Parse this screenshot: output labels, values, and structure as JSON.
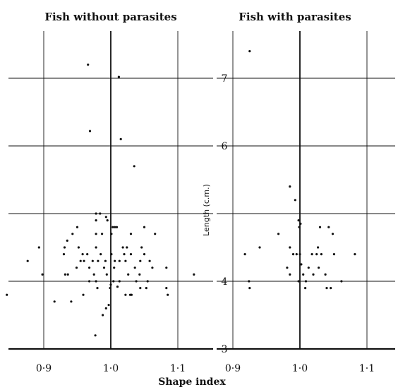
{
  "chart_data": {
    "type": "scatter",
    "xlabel": "Shape index",
    "ylabel": "Length (c.m.)",
    "xlim": [
      0.85,
      1.15
    ],
    "ylim": [
      3,
      8.6
    ],
    "x_ticks": [
      0.9,
      1.0,
      1.1
    ],
    "x_tick_labels": [
      "0·9",
      "1·0",
      "1·1"
    ],
    "y_ticks": [
      3,
      4,
      5,
      6,
      7
    ],
    "y_tick_labels": [
      "3",
      "4",
      "",
      "6",
      "7"
    ],
    "grid": true,
    "panels": [
      {
        "title": "Fish without parasites",
        "points": [
          [
            0.966,
            7.2
          ],
          [
            1.012,
            7.02
          ],
          [
            0.969,
            6.22
          ],
          [
            1.015,
            6.1
          ],
          [
            1.035,
            5.7
          ],
          [
            0.978,
            5.0
          ],
          [
            0.984,
            5.0
          ],
          [
            1.003,
            4.8
          ],
          [
            1.006,
            4.8
          ],
          [
            1.009,
            4.8
          ],
          [
            0.95,
            4.8
          ],
          [
            1.05,
            4.8
          ],
          [
            0.978,
            4.9
          ],
          [
            0.995,
            4.9
          ],
          [
            0.993,
            4.95
          ],
          [
            0.935,
            4.6
          ],
          [
            0.943,
            4.7
          ],
          [
            0.978,
            4.7
          ],
          [
            0.987,
            4.7
          ],
          [
            1.001,
            4.7
          ],
          [
            1.03,
            4.7
          ],
          [
            1.066,
            4.7
          ],
          [
            0.952,
            4.5
          ],
          [
            0.931,
            4.5
          ],
          [
            0.893,
            4.5
          ],
          [
            0.978,
            4.5
          ],
          [
            1.018,
            4.5
          ],
          [
            1.024,
            4.5
          ],
          [
            1.046,
            4.5
          ],
          [
            0.955,
            4.3
          ],
          [
            0.96,
            4.3
          ],
          [
            0.973,
            4.3
          ],
          [
            0.981,
            4.3
          ],
          [
            0.992,
            4.3
          ],
          [
            1.006,
            4.3
          ],
          [
            1.013,
            4.3
          ],
          [
            1.022,
            4.3
          ],
          [
            1.044,
            4.3
          ],
          [
            1.058,
            4.3
          ],
          [
            0.958,
            4.4
          ],
          [
            0.985,
            4.4
          ],
          [
            1.001,
            4.4
          ],
          [
            1.02,
            4.4
          ],
          [
            1.03,
            4.4
          ],
          [
            1.05,
            4.4
          ],
          [
            0.93,
            4.4
          ],
          [
            0.965,
            4.4
          ],
          [
            0.876,
            4.3
          ],
          [
            0.949,
            4.2
          ],
          [
            0.968,
            4.2
          ],
          [
            0.99,
            4.2
          ],
          [
            1.005,
            4.2
          ],
          [
            1.036,
            4.2
          ],
          [
            1.062,
            4.2
          ],
          [
            1.083,
            4.2
          ],
          [
            0.898,
            4.1
          ],
          [
            0.932,
            4.1
          ],
          [
            0.936,
            4.1
          ],
          [
            0.975,
            4.1
          ],
          [
            0.994,
            4.1
          ],
          [
            1.026,
            4.1
          ],
          [
            1.043,
            4.1
          ],
          [
            1.124,
            4.1
          ],
          [
            0.968,
            4.0
          ],
          [
            0.978,
            4.0
          ],
          [
            1.013,
            4.0
          ],
          [
            1.038,
            4.0
          ],
          [
            1.055,
            4.0
          ],
          [
            1.004,
            4.0
          ],
          [
            0.845,
            3.8
          ],
          [
            0.916,
            3.7
          ],
          [
            0.941,
            3.7
          ],
          [
            0.959,
            3.8
          ],
          [
            0.98,
            3.9
          ],
          [
            0.999,
            3.9
          ],
          [
            1.0,
            3.95
          ],
          [
            1.022,
            3.8
          ],
          [
            1.029,
            3.8
          ],
          [
            1.031,
            3.8
          ],
          [
            1.044,
            3.9
          ],
          [
            1.053,
            3.9
          ],
          [
            1.083,
            3.9
          ],
          [
            1.085,
            3.8
          ],
          [
            0.993,
            3.6
          ],
          [
            0.988,
            3.5
          ],
          [
            0.997,
            3.65
          ],
          [
            0.977,
            3.2
          ],
          [
            1.01,
            3.92
          ]
        ]
      },
      {
        "title": "Fish with parasites",
        "points": [
          [
            0.925,
            7.4
          ],
          [
            0.985,
            5.4
          ],
          [
            0.993,
            5.2
          ],
          [
            0.998,
            4.9
          ],
          [
            1.001,
            4.85
          ],
          [
            0.968,
            4.7
          ],
          [
            0.999,
            4.8
          ],
          [
            1.03,
            4.8
          ],
          [
            1.043,
            4.8
          ],
          [
            1.049,
            4.7
          ],
          [
            0.94,
            4.5
          ],
          [
            0.985,
            4.5
          ],
          [
            1.027,
            4.5
          ],
          [
            0.918,
            4.4
          ],
          [
            0.99,
            4.4
          ],
          [
            0.995,
            4.4
          ],
          [
            1.0,
            4.4
          ],
          [
            1.018,
            4.4
          ],
          [
            1.025,
            4.4
          ],
          [
            1.032,
            4.4
          ],
          [
            1.051,
            4.4
          ],
          [
            1.082,
            4.4
          ],
          [
            0.981,
            4.2
          ],
          [
            1.013,
            4.2
          ],
          [
            1.028,
            4.2
          ],
          [
            1.002,
            4.25
          ],
          [
            0.985,
            4.1
          ],
          [
            1.005,
            4.1
          ],
          [
            1.02,
            4.1
          ],
          [
            1.038,
            4.1
          ],
          [
            0.924,
            4.0
          ],
          [
            0.998,
            4.0
          ],
          [
            1.009,
            4.0
          ],
          [
            1.062,
            4.0
          ],
          [
            0.925,
            3.9
          ],
          [
            1.008,
            3.9
          ],
          [
            1.04,
            3.9
          ],
          [
            1.046,
            3.9
          ]
        ]
      }
    ]
  }
}
